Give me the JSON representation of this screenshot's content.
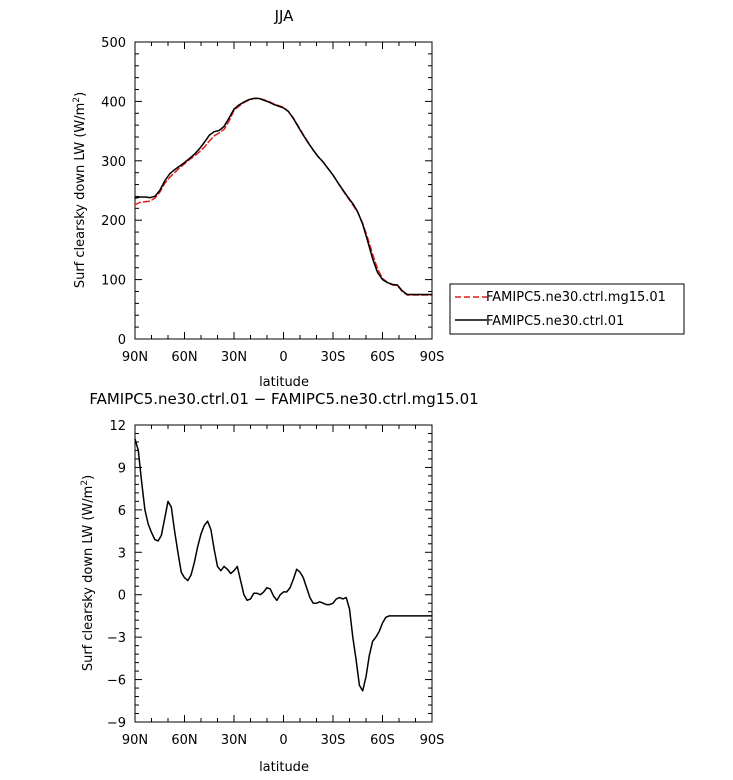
{
  "chart_data": [
    {
      "type": "line",
      "title": "JJA",
      "xlabel": "latitude",
      "ylabel": "Surf clearsky down LW (W/m",
      "ylabel_superscript": "2",
      "ylabel_suffix": ")",
      "x_tick_labels": [
        "90N",
        "60N",
        "30N",
        "0",
        "30S",
        "60S",
        "90S"
      ],
      "x_tick_values": [
        90,
        60,
        30,
        0,
        -30,
        -60,
        -90
      ],
      "xlim": [
        90,
        -90
      ],
      "ylim": [
        0,
        500
      ],
      "y_ticks": [
        0,
        100,
        200,
        300,
        400,
        500
      ],
      "legend_placement": "right",
      "series": [
        {
          "name": "FAMIPC5.ne30.ctrl.mg15.01",
          "color": "#e01b1b",
          "dash": "dashed",
          "x": [
            90,
            87,
            84,
            81,
            78,
            75,
            72,
            69,
            66,
            63,
            60,
            57,
            54,
            51,
            48,
            45,
            42,
            39,
            36,
            33,
            30,
            27,
            24,
            21,
            18,
            15,
            12,
            9,
            6,
            3,
            0,
            -3,
            -6,
            -9,
            -12,
            -15,
            -18,
            -21,
            -24,
            -27,
            -30,
            -33,
            -36,
            -39,
            -42,
            -45,
            -48,
            -51,
            -54,
            -57,
            -60,
            -63,
            -66,
            -69,
            -72,
            -75,
            -78,
            -81,
            -84,
            -87,
            -90
          ],
          "y": [
            226,
            230,
            231,
            232,
            237,
            247,
            262,
            272,
            280,
            288,
            295,
            302,
            308,
            315,
            323,
            333,
            342,
            347,
            353,
            367,
            385,
            392,
            398,
            402,
            405,
            405,
            403,
            400,
            396,
            393,
            390,
            383,
            372,
            358,
            344,
            331,
            318,
            307,
            298,
            287,
            276,
            263,
            250,
            238,
            226,
            213,
            195,
            170,
            143,
            118,
            102,
            95,
            91,
            90,
            80,
            74,
            74,
            74,
            74,
            74,
            74
          ]
        },
        {
          "name": "FAMIPC5.ne30.ctrl.01",
          "color": "#000000",
          "dash": "solid",
          "x": [
            90,
            87,
            84,
            81,
            78,
            75,
            72,
            69,
            66,
            63,
            60,
            57,
            54,
            51,
            48,
            45,
            42,
            39,
            36,
            33,
            30,
            27,
            24,
            21,
            18,
            15,
            12,
            9,
            6,
            3,
            0,
            -3,
            -6,
            -9,
            -12,
            -15,
            -18,
            -21,
            -24,
            -27,
            -30,
            -33,
            -36,
            -39,
            -42,
            -45,
            -48,
            -51,
            -54,
            -57,
            -60,
            -63,
            -66,
            -69,
            -72,
            -75,
            -78,
            -81,
            -84,
            -87,
            -90
          ],
          "y": [
            237,
            239,
            239,
            238,
            240,
            250,
            266,
            278,
            285,
            291,
            297,
            304,
            311,
            320,
            331,
            343,
            349,
            351,
            358,
            372,
            387,
            394,
            399,
            403,
            405,
            405,
            402,
            399,
            395,
            392,
            389,
            383,
            371,
            357,
            343,
            330,
            318,
            307,
            298,
            287,
            276,
            263,
            251,
            239,
            228,
            214,
            193,
            165,
            135,
            112,
            100,
            95,
            92,
            91,
            81,
            75,
            75,
            75,
            75,
            75,
            75
          ]
        }
      ]
    },
    {
      "type": "line",
      "title": "FAMIPC5.ne30.ctrl.01 − FAMIPC5.ne30.ctrl.mg15.01",
      "xlabel": "latitude",
      "ylabel": "Surf clearsky down LW (W/m",
      "ylabel_superscript": "2",
      "ylabel_suffix": ")",
      "x_tick_labels": [
        "90N",
        "60N",
        "30N",
        "0",
        "30S",
        "60S",
        "90S"
      ],
      "x_tick_values": [
        90,
        60,
        30,
        0,
        -30,
        -60,
        -90
      ],
      "xlim": [
        90,
        -90
      ],
      "ylim": [
        -9,
        12
      ],
      "y_ticks": [
        -9,
        -6,
        -3,
        0,
        3,
        6,
        9,
        12
      ],
      "y_tick_labels": [
        "−9",
        "−6",
        "−3",
        "0",
        "3",
        "6",
        "9",
        "12"
      ],
      "series": [
        {
          "color": "#000000",
          "dash": "solid",
          "x": [
            90,
            88,
            86,
            84,
            82,
            80,
            78,
            76,
            74,
            72,
            70,
            68,
            66,
            64,
            62,
            60,
            58,
            56,
            54,
            52,
            50,
            48,
            46,
            44,
            42,
            40,
            38,
            36,
            34,
            32,
            30,
            28,
            26,
            24,
            22,
            20,
            18,
            16,
            14,
            12,
            10,
            8,
            6,
            4,
            2,
            0,
            -2,
            -4,
            -6,
            -8,
            -10,
            -12,
            -14,
            -16,
            -18,
            -20,
            -22,
            -24,
            -26,
            -28,
            -30,
            -32,
            -34,
            -36,
            -38,
            -40,
            -42,
            -44,
            -46,
            -48,
            -50,
            -52,
            -54,
            -56,
            -58,
            -60,
            -62,
            -64,
            -66,
            -68,
            -70,
            -72,
            -74,
            -76,
            -78,
            -80,
            -82,
            -84,
            -86,
            -88,
            -90
          ],
          "y": [
            11,
            10.2,
            8.0,
            6.0,
            5.0,
            4.4,
            3.9,
            3.8,
            4.2,
            5.4,
            6.6,
            6.2,
            4.5,
            3.0,
            1.6,
            1.2,
            1.0,
            1.4,
            2.3,
            3.4,
            4.3,
            4.9,
            5.2,
            4.6,
            3.2,
            2.0,
            1.7,
            2.0,
            1.8,
            1.5,
            1.7,
            2.0,
            1.0,
            0.0,
            -0.4,
            -0.3,
            0.1,
            0.1,
            0.0,
            0.2,
            0.5,
            0.4,
            -0.1,
            -0.4,
            0.0,
            0.2,
            0.2,
            0.5,
            1.1,
            1.8,
            1.6,
            1.2,
            0.5,
            -0.2,
            -0.6,
            -0.6,
            -0.5,
            -0.6,
            -0.7,
            -0.7,
            -0.6,
            -0.3,
            -0.2,
            -0.3,
            -0.2,
            -1.0,
            -3.0,
            -4.6,
            -6.4,
            -6.8,
            -5.8,
            -4.3,
            -3.3,
            -3.0,
            -2.6,
            -2.0,
            -1.6,
            -1.5,
            -1.5,
            -1.5,
            -1.5,
            -1.5,
            -1.5,
            -1.5,
            -1.5,
            -1.5,
            -1.5,
            -1.5,
            -1.5,
            -1.5,
            -1.5
          ]
        }
      ]
    }
  ]
}
